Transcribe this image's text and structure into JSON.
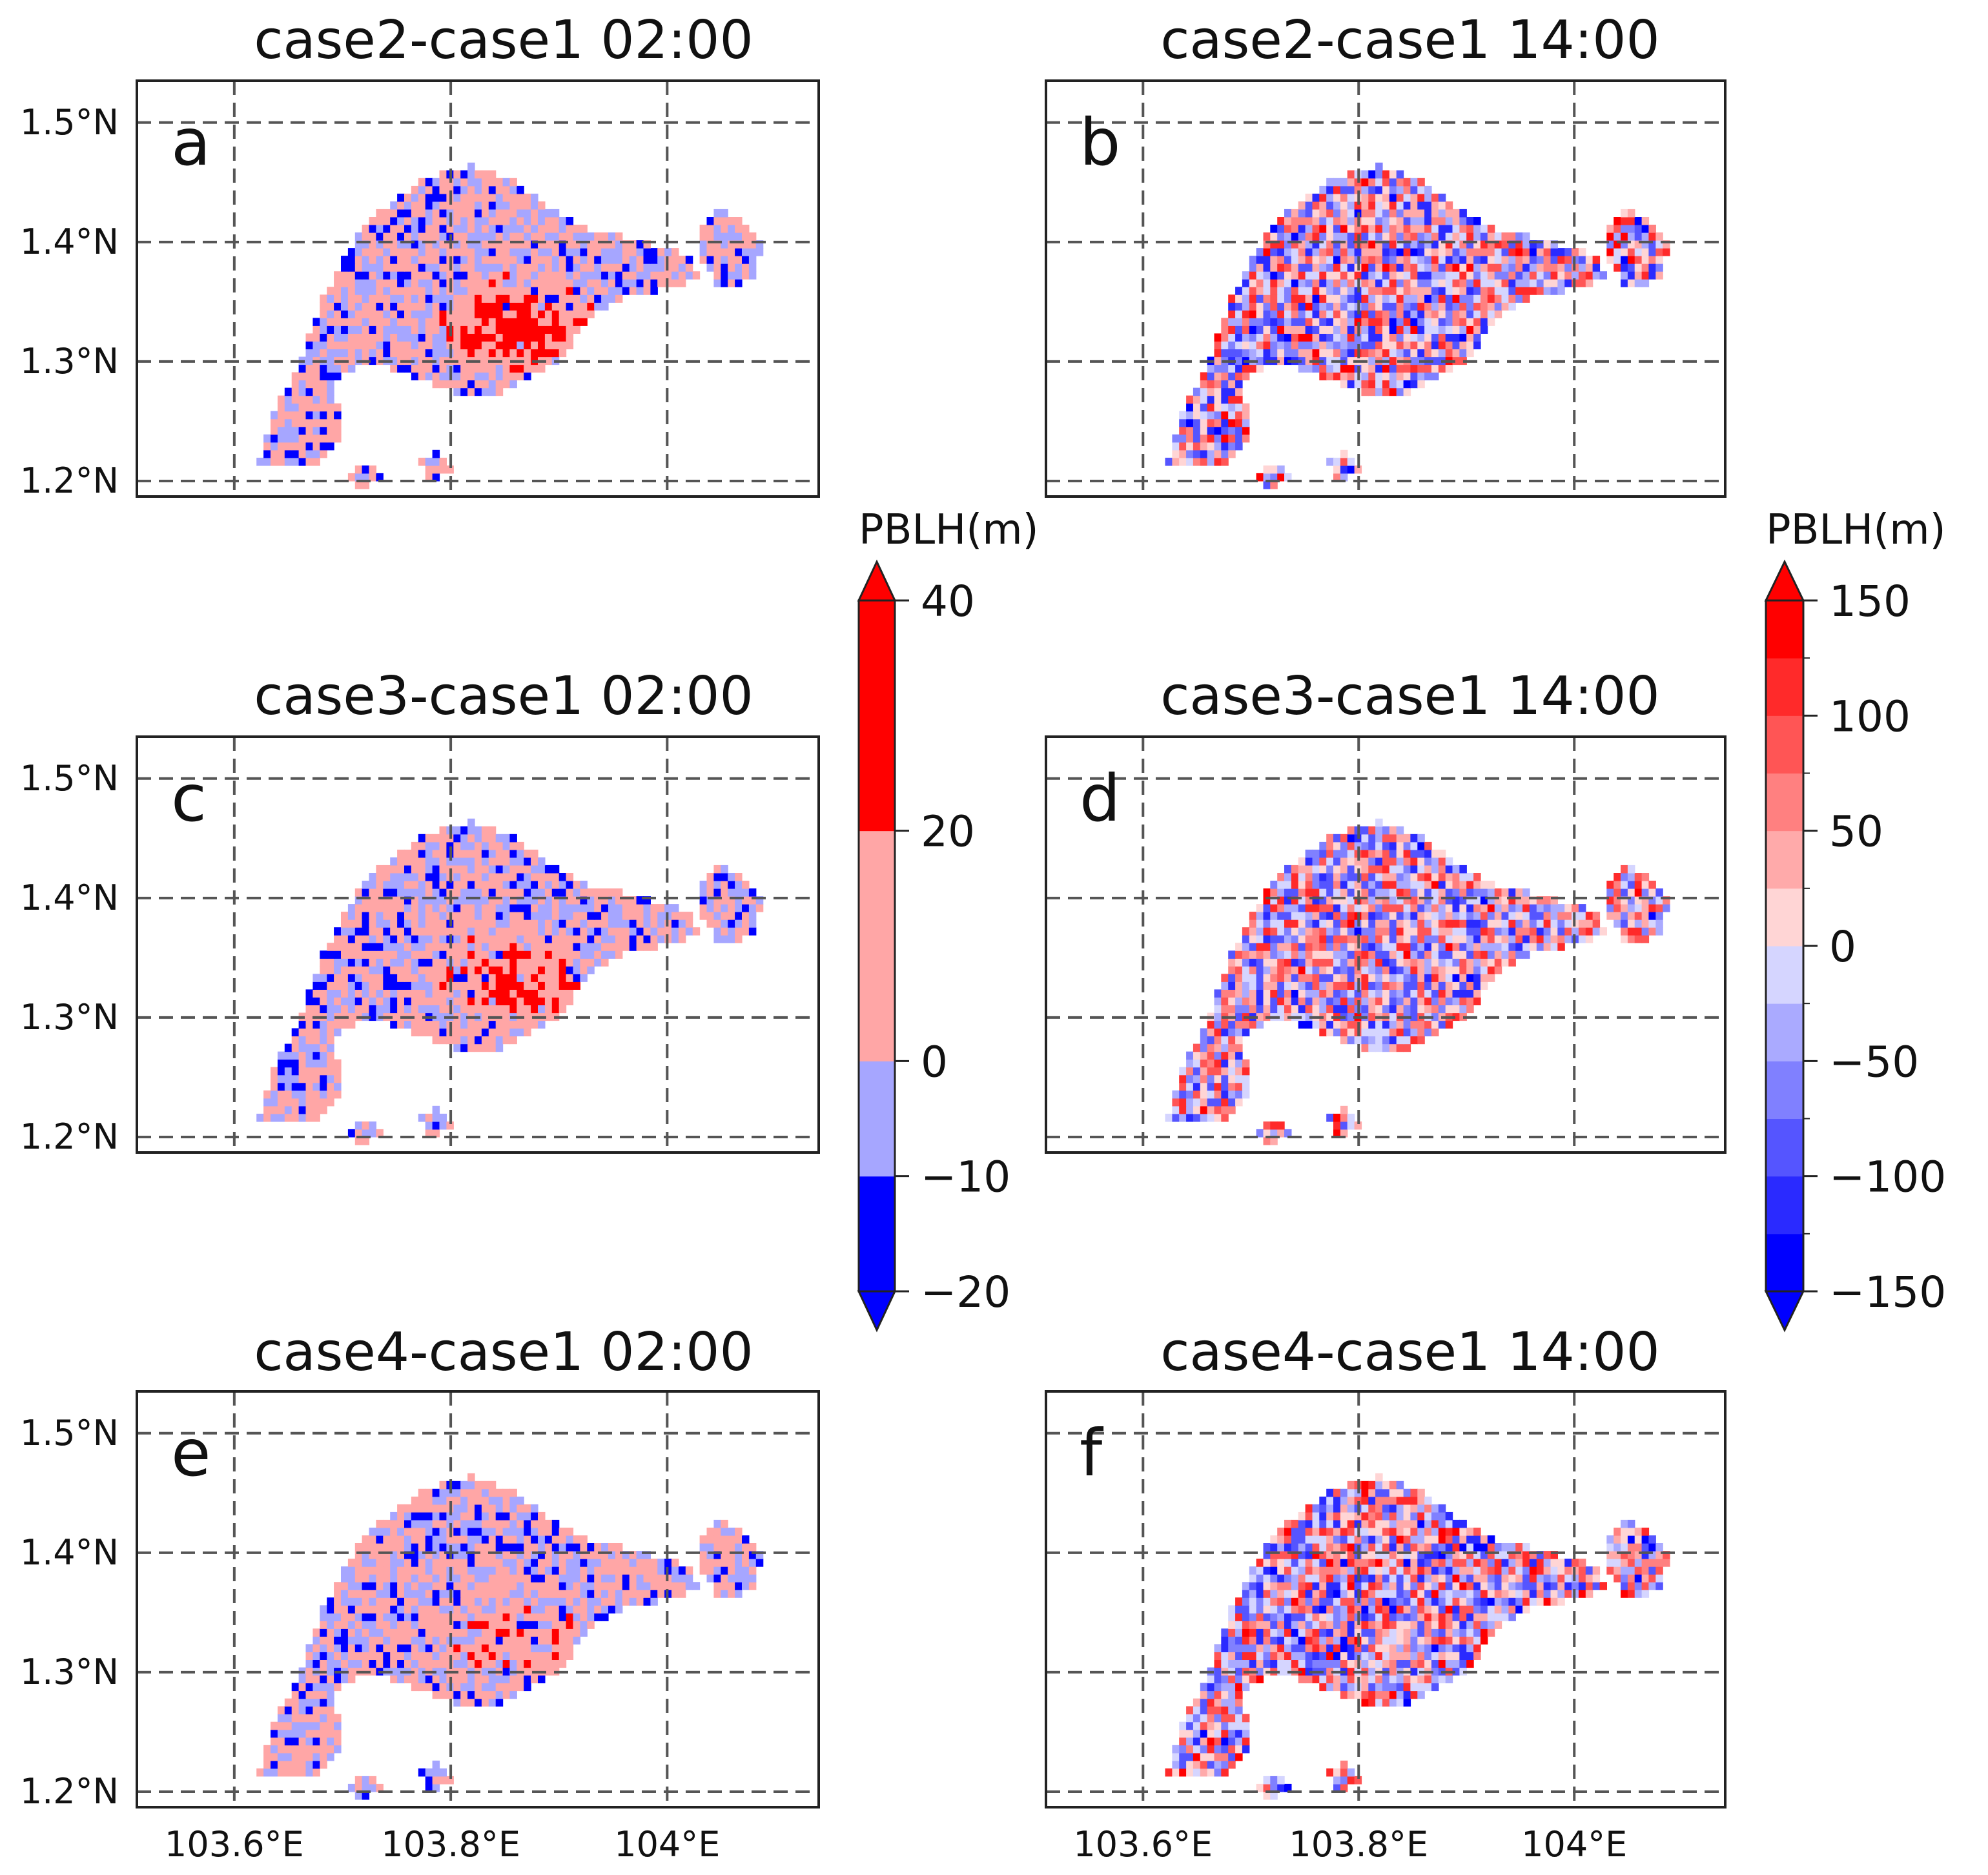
{
  "chart_data": {
    "type": "heatmap",
    "variable": "PBLH(m)",
    "x_ticks": [
      {
        "value": 103.6,
        "label": "103.6°E"
      },
      {
        "value": 103.8,
        "label": "103.8°E"
      },
      {
        "value": 104.0,
        "label": "104°E"
      }
    ],
    "y_ticks": [
      {
        "value": 1.2,
        "label": "1.2°N"
      },
      {
        "value": 1.3,
        "label": "1.3°N"
      },
      {
        "value": 1.4,
        "label": "1.4°N"
      },
      {
        "value": 1.5,
        "label": "1.5°N"
      }
    ],
    "xlim": [
      103.51,
      104.14
    ],
    "ylim": [
      1.187,
      1.535
    ],
    "panels": [
      {
        "id": "a",
        "title": "case2-case1 02:00",
        "colorbar": "night",
        "positive_bias": 0.75,
        "spread": 1.0
      },
      {
        "id": "b",
        "title": "case2-case1 14:00",
        "colorbar": "day",
        "positive_bias": 0.0,
        "spread": 1.0
      },
      {
        "id": "c",
        "title": "case3-case1 02:00",
        "colorbar": "night",
        "positive_bias": 0.5,
        "spread": 1.0
      },
      {
        "id": "d",
        "title": "case3-case1 14:00",
        "colorbar": "day",
        "positive_bias": 0.0,
        "spread": 0.9
      },
      {
        "id": "e",
        "title": "case4-case1 02:00",
        "colorbar": "night",
        "positive_bias": 0.25,
        "spread": 1.0
      },
      {
        "id": "f",
        "title": "case4-case1 14:00",
        "colorbar": "day",
        "positive_bias": 0.05,
        "spread": 1.0
      }
    ],
    "colorbars": {
      "night": {
        "label": "PBLH(m)",
        "levels": [
          -20,
          -10,
          0,
          20,
          40
        ],
        "tick_labels": [
          "−20",
          "−10",
          "0",
          "20",
          "40"
        ],
        "colors": [
          "#0000ff",
          "#a6a6ff",
          "#ffa6a6",
          "#ff0000"
        ],
        "extend": "both"
      },
      "day": {
        "label": "PBLH(m)",
        "levels": [
          -150,
          -125,
          -100,
          -75,
          -50,
          -25,
          0,
          25,
          50,
          75,
          100,
          125,
          150
        ],
        "tick_values": [
          -150,
          -100,
          -50,
          0,
          50,
          100,
          150
        ],
        "tick_labels": [
          "−150",
          "−100",
          "−50",
          "0",
          "50",
          "100",
          "150"
        ],
        "colors": [
          "#0000ff",
          "#2a2aff",
          "#5555ff",
          "#8080ff",
          "#aaaaff",
          "#d5d5ff",
          "#ffd5d5",
          "#ffaaaa",
          "#ff8080",
          "#ff5555",
          "#ff2a2a",
          "#ff0000"
        ],
        "extend": "both"
      }
    }
  }
}
